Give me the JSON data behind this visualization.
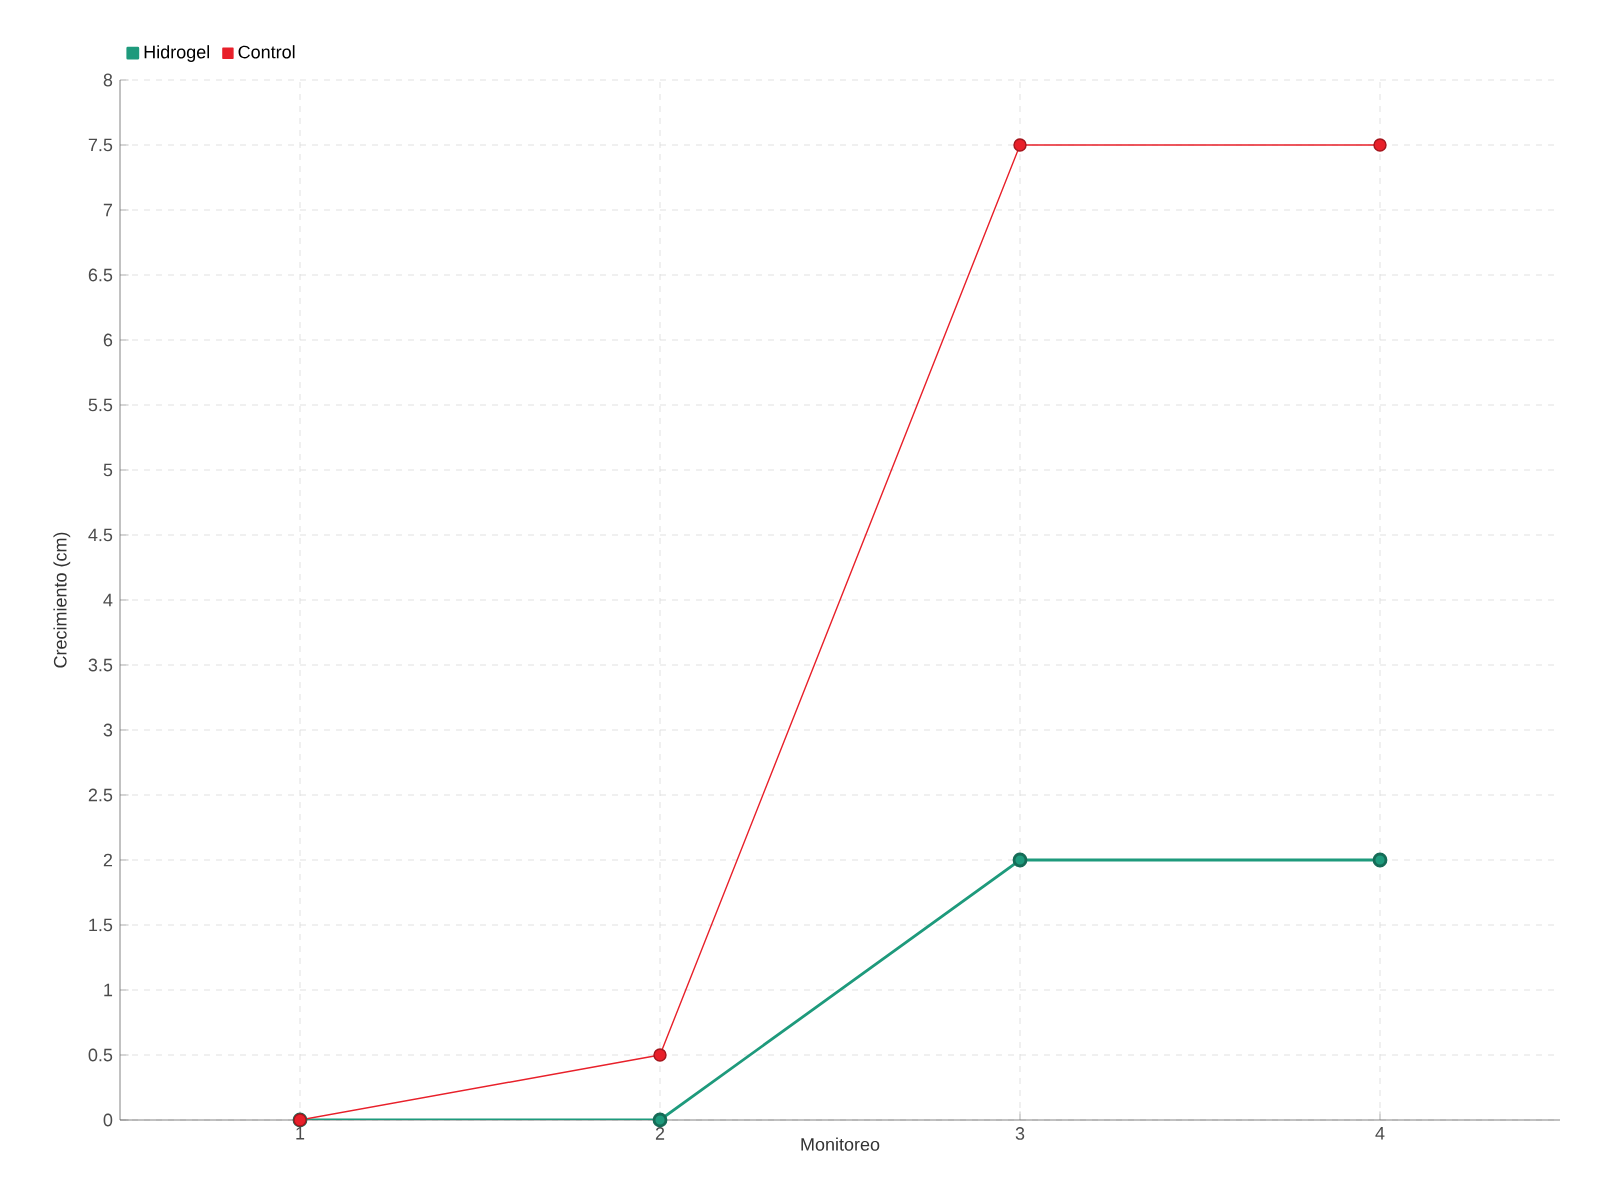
{
  "chart_data": {
    "type": "line",
    "xlabel": "Monitoreo",
    "ylabel": "Crecimiento (cm)",
    "categories": [
      "1",
      "2",
      "3",
      "4"
    ],
    "series": [
      {
        "name": "Hidrogel",
        "color": "#1e9a7c",
        "values": [
          0,
          0,
          2,
          2
        ]
      },
      {
        "name": "Control",
        "color": "#e8202a",
        "values": [
          0,
          0.5,
          7.5,
          7.5
        ]
      }
    ],
    "ylim": [
      0,
      8
    ],
    "yticks": [
      0,
      0.5,
      1,
      1.5,
      2,
      2.5,
      3,
      3.5,
      4,
      4.5,
      5,
      5.5,
      6,
      6.5,
      7,
      7.5,
      8
    ],
    "grid": true,
    "legend": "top left",
    "marker": "circle",
    "line_style": "solid"
  }
}
